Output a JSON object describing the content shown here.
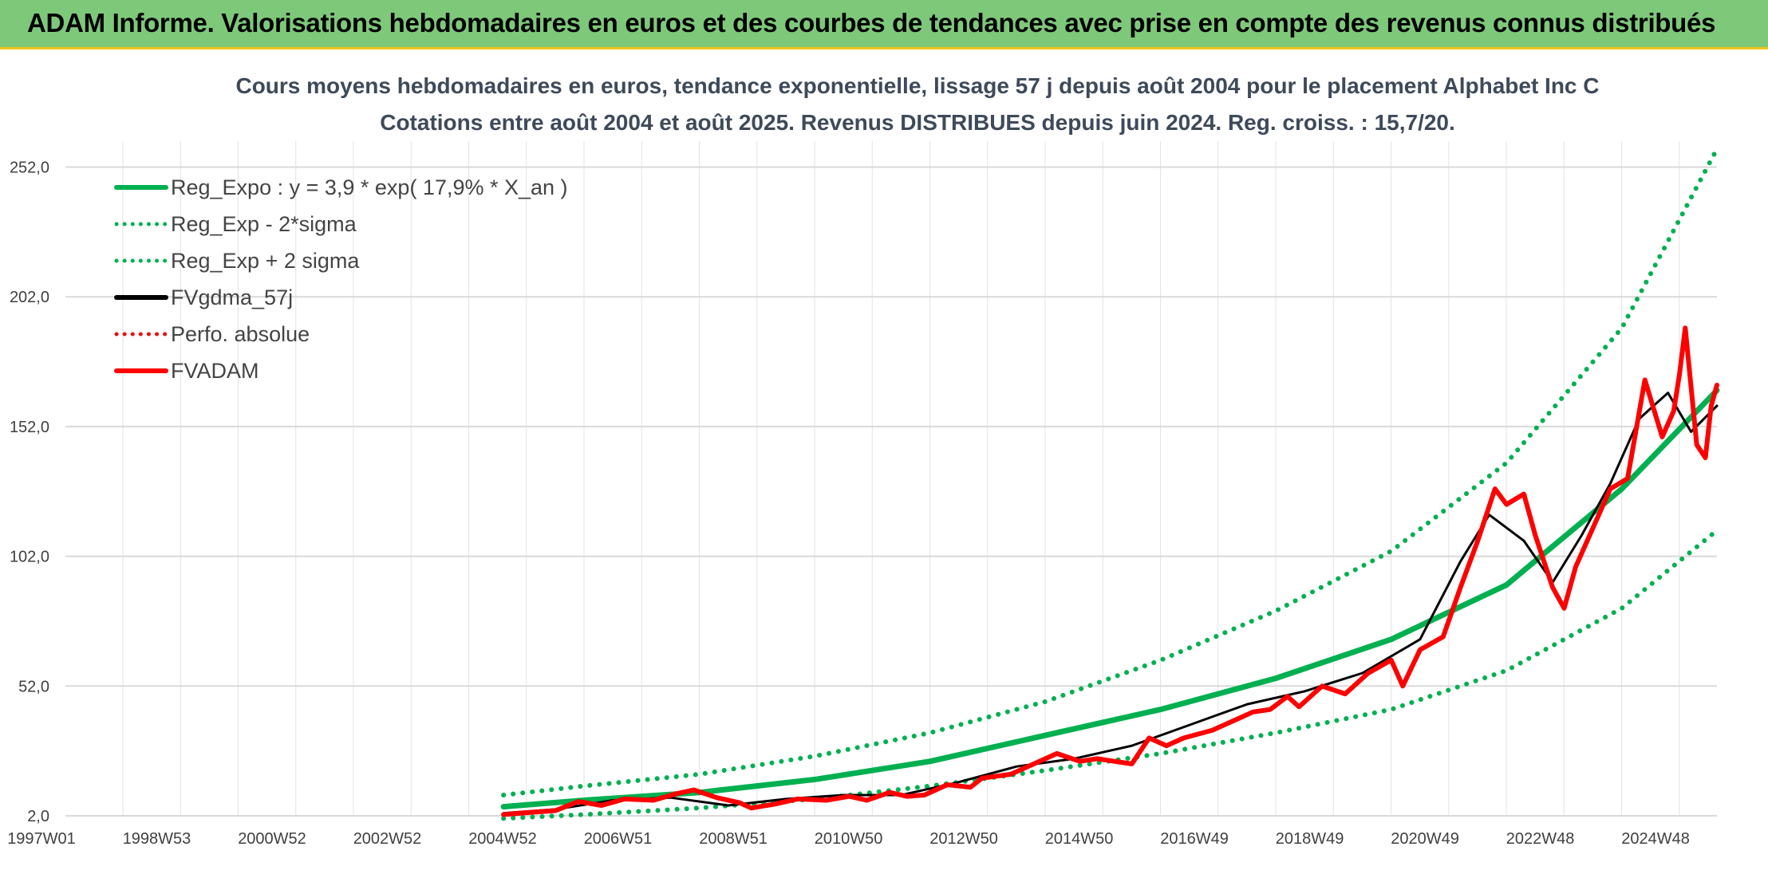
{
  "header": {
    "banner": "ADAM Informe. Valorisations hebdomadaires en euros et des courbes de tendances avec prise en compte des revenus connus distribués"
  },
  "chart_data": {
    "type": "line",
    "title": "Cours moyens hebdomadaires en euros, tendance exponentielle, lissage 57 j depuis août 2004 pour le placement Alphabet Inc C",
    "subtitle": "Cotations entre août 2004 et août 2025. Revenus DISTRIBUES depuis juin 2024. Reg. croiss. : 15,7/20.",
    "xlabel": "",
    "ylabel": "",
    "x_start_year": 1997,
    "x_end_year": 2025.65,
    "x_ticks": [
      {
        "label": "1997W01",
        "year": 1997.0
      },
      {
        "label": "1998W53",
        "year": 1999.0
      },
      {
        "label": "2000W52",
        "year": 2001.0
      },
      {
        "label": "2002W52",
        "year": 2003.0
      },
      {
        "label": "2004W52",
        "year": 2005.0
      },
      {
        "label": "2006W51",
        "year": 2007.0
      },
      {
        "label": "2008W51",
        "year": 2009.0
      },
      {
        "label": "2010W50",
        "year": 2011.0
      },
      {
        "label": "2012W50",
        "year": 2013.0
      },
      {
        "label": "2014W50",
        "year": 2015.0
      },
      {
        "label": "2016W49",
        "year": 2017.0
      },
      {
        "label": "2018W49",
        "year": 2019.0
      },
      {
        "label": "2020W49",
        "year": 2021.0
      },
      {
        "label": "2022W48",
        "year": 2023.0
      },
      {
        "label": "2024W48",
        "year": 2025.0
      }
    ],
    "ylim": [
      2,
      262
    ],
    "y_ticks": [
      "2,0",
      "52,0",
      "102,0",
      "152,0",
      "202,0",
      "252,0"
    ],
    "y_tick_values": [
      2,
      52,
      102,
      152,
      202,
      252
    ],
    "grid": true,
    "legend_position": "top-left",
    "series": [
      {
        "name": "Reg_Expo : y = 3,9 * exp( 17,9% *  X_an )",
        "color": "#00b050",
        "style": "solid",
        "width": 7,
        "points": [
          [
            2004.6,
            5.5
          ],
          [
            2006,
            8
          ],
          [
            2008,
            11
          ],
          [
            2010,
            16
          ],
          [
            2012,
            23
          ],
          [
            2014,
            33
          ],
          [
            2016,
            43
          ],
          [
            2018,
            55
          ],
          [
            2020,
            70
          ],
          [
            2022,
            91
          ],
          [
            2024,
            128
          ],
          [
            2025.65,
            166
          ]
        ]
      },
      {
        "name": "Reg_Exp - 2*sigma",
        "color": "#00b050",
        "style": "dotted",
        "width": 6,
        "points": [
          [
            2004.6,
            1
          ],
          [
            2006,
            2.5
          ],
          [
            2008,
            5
          ],
          [
            2010,
            8.5
          ],
          [
            2012,
            13.5
          ],
          [
            2014,
            19.5
          ],
          [
            2016,
            26
          ],
          [
            2018,
            34
          ],
          [
            2020,
            43
          ],
          [
            2022,
            58
          ],
          [
            2024,
            82
          ],
          [
            2025.65,
            112
          ]
        ]
      },
      {
        "name": "Reg_Exp + 2 sigma",
        "color": "#00b050",
        "style": "dotted",
        "width": 6,
        "points": [
          [
            2004.6,
            10
          ],
          [
            2006,
            13.5
          ],
          [
            2008,
            18
          ],
          [
            2010,
            25
          ],
          [
            2012,
            34
          ],
          [
            2014,
            46
          ],
          [
            2016,
            62
          ],
          [
            2018,
            81
          ],
          [
            2020,
            104
          ],
          [
            2022,
            138
          ],
          [
            2024,
            190
          ],
          [
            2025.65,
            259
          ]
        ]
      },
      {
        "name": "FVgdma_57j",
        "color": "#000000",
        "style": "solid",
        "width": 3,
        "points": [
          [
            2004.6,
            3
          ],
          [
            2005.5,
            4.5
          ],
          [
            2006.5,
            8
          ],
          [
            2007.5,
            9
          ],
          [
            2008.5,
            6
          ],
          [
            2009.5,
            8.5
          ],
          [
            2010.5,
            10
          ],
          [
            2011.5,
            10
          ],
          [
            2012.5,
            15
          ],
          [
            2013.5,
            21
          ],
          [
            2014.5,
            24
          ],
          [
            2015.5,
            29
          ],
          [
            2016.5,
            37
          ],
          [
            2017.5,
            45
          ],
          [
            2018.5,
            50
          ],
          [
            2019.5,
            57
          ],
          [
            2020.5,
            70
          ],
          [
            2021.2,
            100
          ],
          [
            2021.7,
            118
          ],
          [
            2022.3,
            108
          ],
          [
            2022.8,
            92
          ],
          [
            2023.3,
            110
          ],
          [
            2023.8,
            130
          ],
          [
            2024.3,
            155
          ],
          [
            2024.8,
            165
          ],
          [
            2025.2,
            150
          ],
          [
            2025.65,
            160
          ]
        ]
      },
      {
        "name": "Perfo. absolue",
        "color": "#e41010",
        "style": "dotted",
        "width": 4,
        "points": []
      },
      {
        "name": "FVADAM",
        "color": "#ff0000",
        "style": "solid",
        "width": 6,
        "points": [
          [
            2004.6,
            2.5
          ],
          [
            2005,
            3.2
          ],
          [
            2005.5,
            4
          ],
          [
            2005.9,
            7.5
          ],
          [
            2006.3,
            6
          ],
          [
            2006.7,
            8.5
          ],
          [
            2007.2,
            8
          ],
          [
            2007.6,
            10.5
          ],
          [
            2007.9,
            12
          ],
          [
            2008.3,
            9
          ],
          [
            2008.7,
            7
          ],
          [
            2008.9,
            5
          ],
          [
            2009.3,
            6.5
          ],
          [
            2009.7,
            8.5
          ],
          [
            2010.2,
            8
          ],
          [
            2010.6,
            9.5
          ],
          [
            2010.9,
            8
          ],
          [
            2011.3,
            11
          ],
          [
            2011.6,
            9.5
          ],
          [
            2011.9,
            10
          ],
          [
            2012.3,
            14
          ],
          [
            2012.7,
            13
          ],
          [
            2012.9,
            16.5
          ],
          [
            2013.4,
            18
          ],
          [
            2013.8,
            22
          ],
          [
            2014.2,
            26
          ],
          [
            2014.6,
            23
          ],
          [
            2014.9,
            24
          ],
          [
            2015.2,
            23
          ],
          [
            2015.5,
            22
          ],
          [
            2015.8,
            32
          ],
          [
            2016.1,
            29
          ],
          [
            2016.4,
            32
          ],
          [
            2016.9,
            35
          ],
          [
            2017.2,
            38
          ],
          [
            2017.6,
            42
          ],
          [
            2017.9,
            43
          ],
          [
            2018.2,
            48
          ],
          [
            2018.4,
            44
          ],
          [
            2018.8,
            52
          ],
          [
            2019.2,
            49
          ],
          [
            2019.6,
            57
          ],
          [
            2020.0,
            62
          ],
          [
            2020.2,
            52
          ],
          [
            2020.5,
            66
          ],
          [
            2020.9,
            71
          ],
          [
            2021.2,
            90
          ],
          [
            2021.5,
            108
          ],
          [
            2021.8,
            128
          ],
          [
            2022.0,
            122
          ],
          [
            2022.3,
            126
          ],
          [
            2022.5,
            110
          ],
          [
            2022.8,
            90
          ],
          [
            2023.0,
            82
          ],
          [
            2023.2,
            98
          ],
          [
            2023.5,
            113
          ],
          [
            2023.8,
            128
          ],
          [
            2024.1,
            132
          ],
          [
            2024.4,
            170
          ],
          [
            2024.7,
            148
          ],
          [
            2024.9,
            158
          ],
          [
            2025.0,
            172
          ],
          [
            2025.1,
            190
          ],
          [
            2025.3,
            145
          ],
          [
            2025.45,
            140
          ],
          [
            2025.55,
            160
          ],
          [
            2025.65,
            168
          ]
        ]
      }
    ]
  }
}
